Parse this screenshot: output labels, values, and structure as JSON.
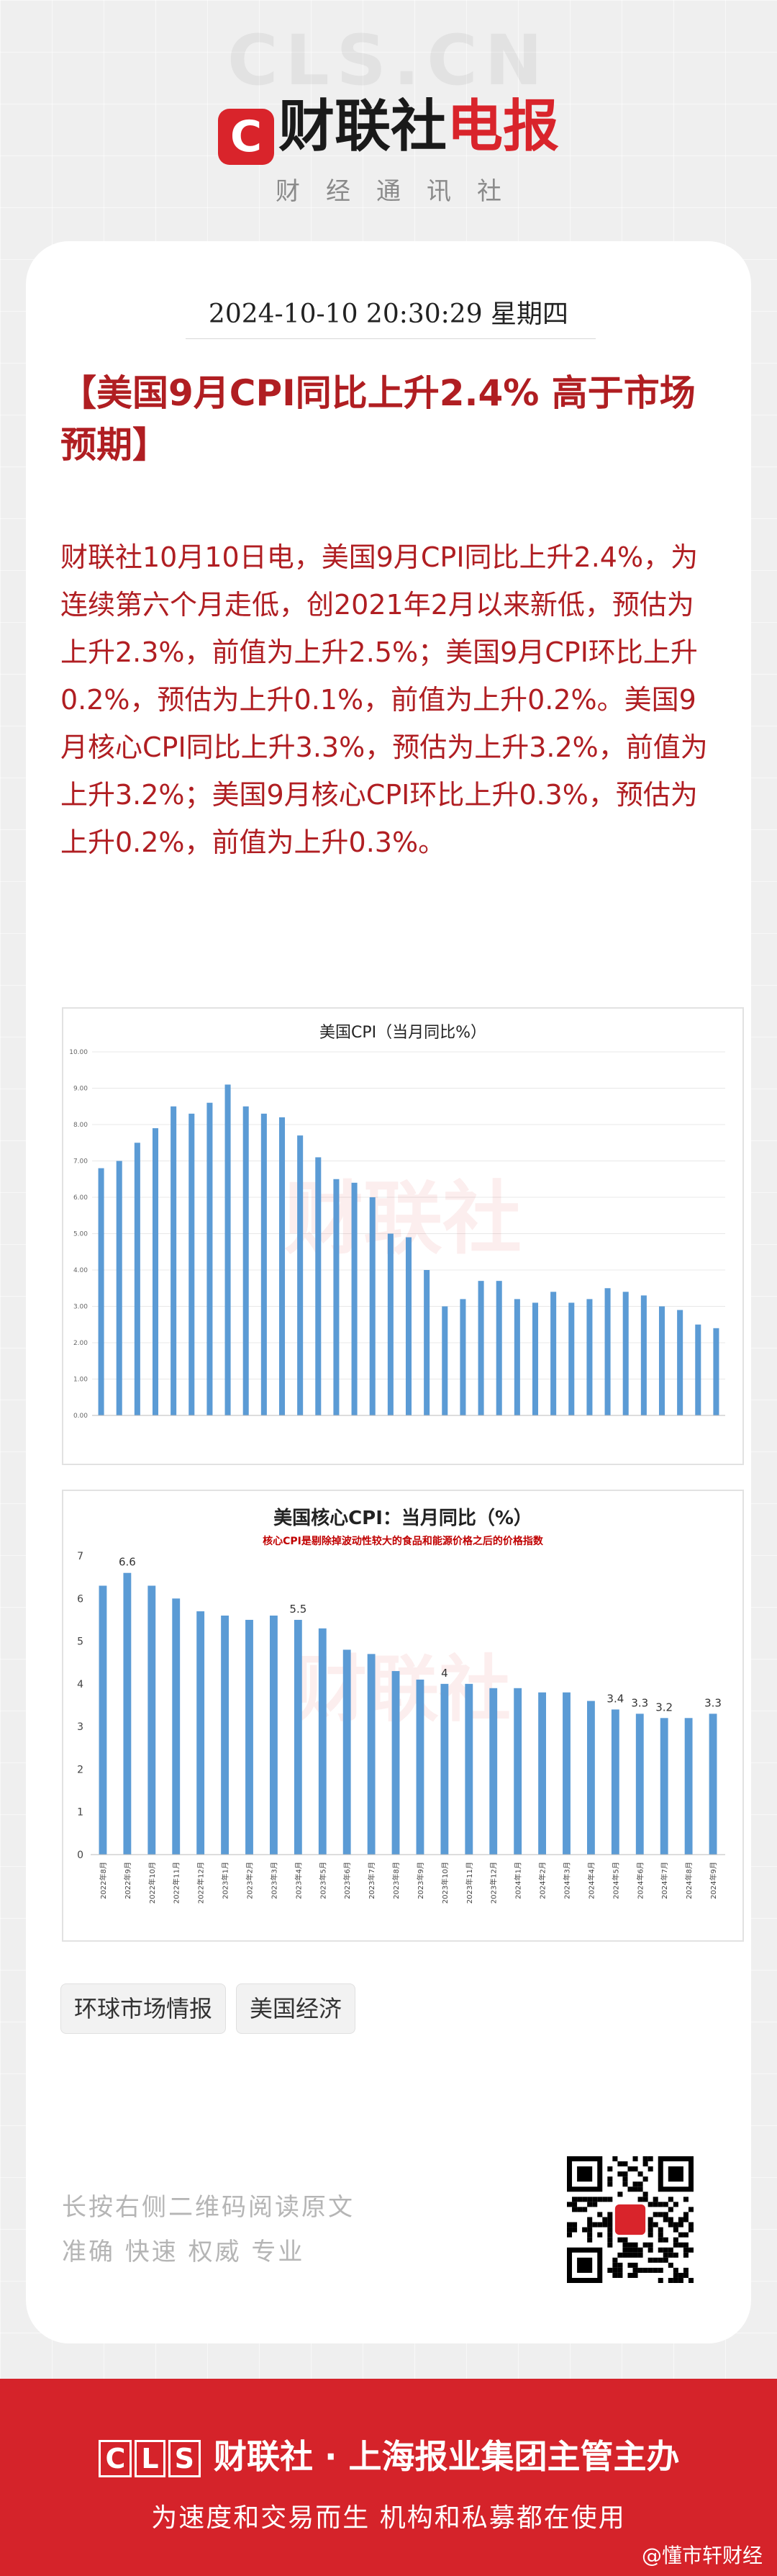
{
  "header": {
    "watermark": "CLS.CN",
    "logo_badge": "C",
    "logo_text": "财联社",
    "logo_red": "电报",
    "subtitle": "财经通讯社"
  },
  "article": {
    "datetime": "2024-10-10 20:30:29 星期四",
    "headline": "【美国9月CPI同比上升2.4% 高于市场预期】",
    "body": "财联社10月10日电，美国9月CPI同比上升2.4%，为连续第六个月走低，创2021年2月以来新低，预估为上升2.3%，前值为上升2.5%；美国9月CPI环比上升0.2%，预估为上升0.1%，前值为上升0.2%。美国9月核心CPI同比上升3.3%，预估为上升3.2%，前值为上升3.2%；美国9月核心CPI环比上升0.3%，预估为上升0.2%，前值为上升0.3%。"
  },
  "chart_data": [
    {
      "type": "bar",
      "title": "美国CPI（当月同比%）",
      "watermark": "财联社",
      "ylim": [
        0,
        10
      ],
      "yticks": [
        "0.00",
        "1.00",
        "2.00",
        "3.00",
        "4.00",
        "5.00",
        "6.00",
        "7.00",
        "8.00",
        "9.00",
        "10.00"
      ],
      "values": [
        6.8,
        7.0,
        7.5,
        7.9,
        8.5,
        8.3,
        8.6,
        9.1,
        8.5,
        8.3,
        8.2,
        7.7,
        7.1,
        6.5,
        6.4,
        6.0,
        5.0,
        4.9,
        4.0,
        3.0,
        3.2,
        3.7,
        3.7,
        3.2,
        3.1,
        3.4,
        3.1,
        3.2,
        3.5,
        3.4,
        3.3,
        3.0,
        2.9,
        2.5,
        2.4
      ],
      "grid": true,
      "color": "#5b9bd5"
    },
    {
      "type": "bar",
      "title": "美国核心CPI：当月同比（%）",
      "subtitle": "核心CPI是剔除掉波动性较大的食品和能源价格之后的价格指数",
      "watermark": "财联社",
      "categories": [
        "2022年8月",
        "2022年9月",
        "2022年10月",
        "2022年11月",
        "2022年12月",
        "2023年1月",
        "2023年2月",
        "2023年3月",
        "2023年4月",
        "2023年5月",
        "2023年6月",
        "2023年7月",
        "2023年8月",
        "2023年9月",
        "2023年10月",
        "2023年11月",
        "2023年12月",
        "2024年1月",
        "2024年2月",
        "2024年3月",
        "2024年4月",
        "2024年5月",
        "2024年6月",
        "2024年7月",
        "2024年8月",
        "2024年9月"
      ],
      "values": [
        6.3,
        6.6,
        6.3,
        6.0,
        5.7,
        5.6,
        5.5,
        5.6,
        5.5,
        5.3,
        4.8,
        4.7,
        4.3,
        4.1,
        4.0,
        4.0,
        3.9,
        3.9,
        3.8,
        3.8,
        3.6,
        3.4,
        3.3,
        3.2,
        3.2,
        3.3
      ],
      "labels": [
        {
          "i": 1,
          "text": "6.6"
        },
        {
          "i": 8,
          "text": "5.5"
        },
        {
          "i": 14,
          "text": "4"
        },
        {
          "i": 21,
          "text": "3.4"
        },
        {
          "i": 22,
          "text": "3.3"
        },
        {
          "i": 23,
          "text": "3.2"
        },
        {
          "i": 25,
          "text": "3.3"
        }
      ],
      "ylim": [
        0,
        7
      ],
      "yticks": [
        "0",
        "1",
        "2",
        "3",
        "4",
        "5",
        "6",
        "7"
      ],
      "color": "#5b9bd5"
    }
  ],
  "tags": [
    "环球市场情报",
    "美国经济"
  ],
  "qr": {
    "line1": "长按右侧二维码阅读原文",
    "line2": "准确 快速 权威 专业"
  },
  "footer": {
    "cls": [
      "C",
      "L",
      "S"
    ],
    "brand": "财联社",
    "line1_rest": "· 上海报业集团主管主办",
    "line2": "为速度和交易而生 机构和私募都在使用",
    "weibo": "@懂市轩财经"
  }
}
